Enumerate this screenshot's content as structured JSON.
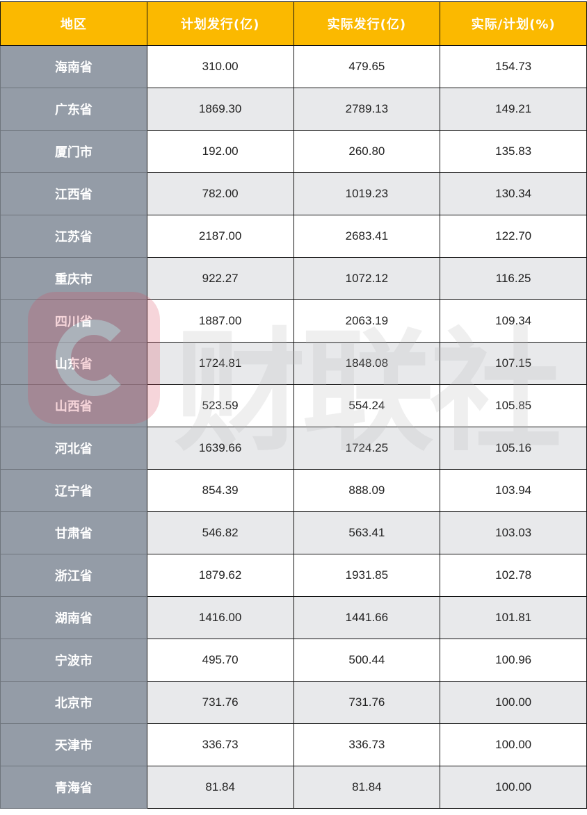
{
  "table": {
    "headers": [
      "地区",
      "计划发行(亿)",
      "实际发行(亿)",
      "实际/计划(%)"
    ],
    "rows": [
      [
        "海南省",
        "310.00",
        "479.65",
        "154.73"
      ],
      [
        "广东省",
        "1869.30",
        "2789.13",
        "149.21"
      ],
      [
        "厦门市",
        "192.00",
        "260.80",
        "135.83"
      ],
      [
        "江西省",
        "782.00",
        "1019.23",
        "130.34"
      ],
      [
        "江苏省",
        "2187.00",
        "2683.41",
        "122.70"
      ],
      [
        "重庆市",
        "922.27",
        "1072.12",
        "116.25"
      ],
      [
        "四川省",
        "1887.00",
        "2063.19",
        "109.34"
      ],
      [
        "山东省",
        "1724.81",
        "1848.08",
        "107.15"
      ],
      [
        "山西省",
        "523.59",
        "554.24",
        "105.85"
      ],
      [
        "河北省",
        "1639.66",
        "1724.25",
        "105.16"
      ],
      [
        "辽宁省",
        "854.39",
        "888.09",
        "103.94"
      ],
      [
        "甘肃省",
        "546.82",
        "563.41",
        "103.03"
      ],
      [
        "浙江省",
        "1879.62",
        "1931.85",
        "102.78"
      ],
      [
        "湖南省",
        "1416.00",
        "1441.66",
        "101.81"
      ],
      [
        "宁波市",
        "495.70",
        "500.44",
        "100.96"
      ],
      [
        "北京市",
        "731.76",
        "731.76",
        "100.00"
      ],
      [
        "天津市",
        "336.73",
        "336.73",
        "100.00"
      ],
      [
        "青海省",
        "81.84",
        "81.84",
        "100.00"
      ]
    ]
  },
  "watermark": {
    "text": "财联社"
  },
  "colors": {
    "header": "#fbb900",
    "region_column": "#949ca7",
    "alt_row": "#e8e9eb"
  }
}
